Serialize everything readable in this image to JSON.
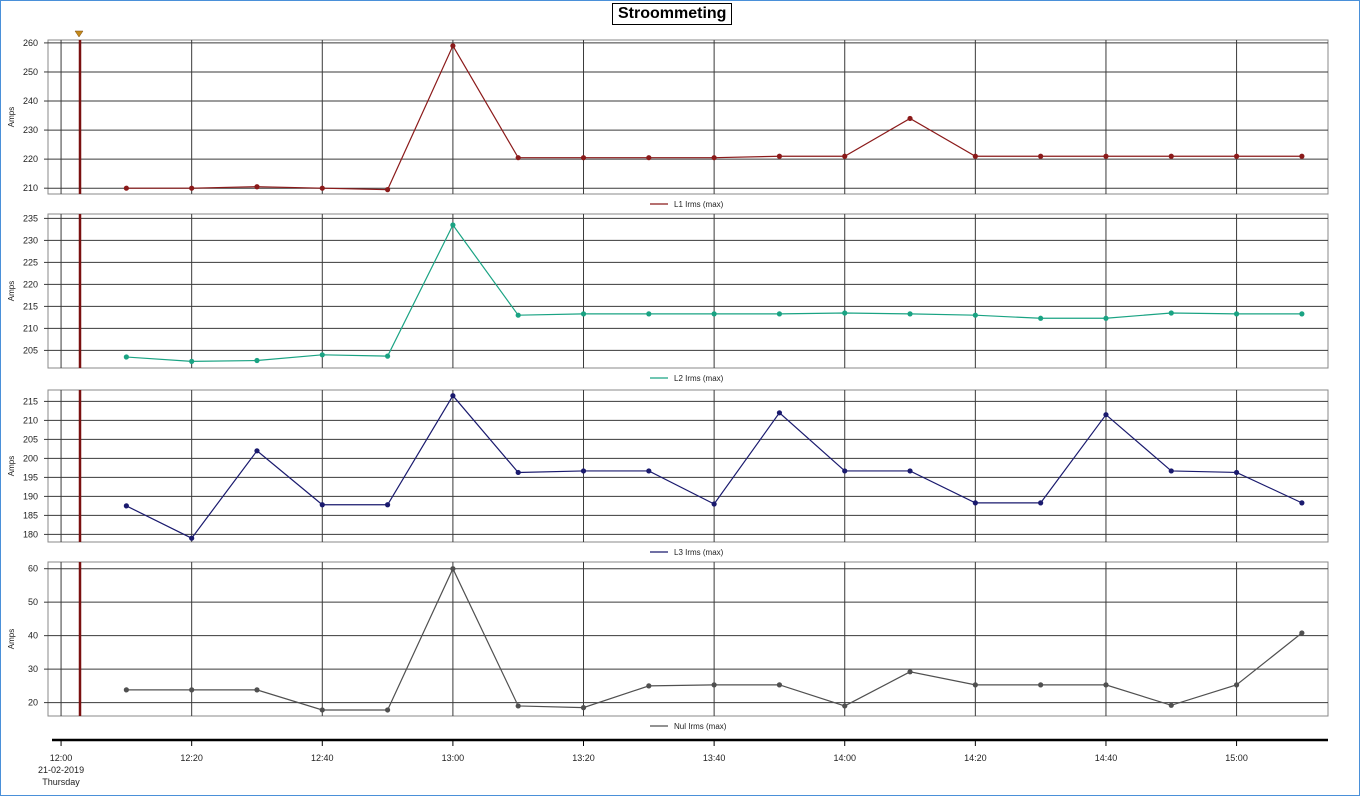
{
  "title": "Stroommeting",
  "date_label": "21-02-2019",
  "day_label": "Thursday",
  "chart_data": {
    "type": "line",
    "x": [
      "12:10",
      "12:20",
      "12:30",
      "12:40",
      "12:50",
      "13:00",
      "13:10",
      "13:20",
      "13:30",
      "13:40",
      "13:50",
      "14:00",
      "14:10",
      "14:20",
      "14:30",
      "14:40",
      "14:50",
      "15:00",
      "15:10"
    ],
    "x_ticks": [
      "12:00",
      "12:20",
      "12:40",
      "13:00",
      "13:20",
      "13:40",
      "14:00",
      "14:20",
      "14:40",
      "15:00"
    ],
    "xlim": [
      "11:58",
      "15:14"
    ],
    "grid": true,
    "panels": [
      {
        "ylabel": "Amps",
        "ylim": [
          208,
          261
        ],
        "y_ticks": [
          210,
          220,
          230,
          240,
          250,
          260
        ],
        "series": [
          {
            "name": "L1  Irms (max)",
            "color": "#8b1a1a",
            "values": [
              210,
              210,
              210.5,
              210,
              209.5,
              259,
              220.5,
              220.5,
              220.5,
              220.5,
              221,
              221,
              234,
              221,
              221,
              221,
              221,
              221,
              221
            ]
          }
        ]
      },
      {
        "ylabel": "Amps",
        "ylim": [
          201,
          236
        ],
        "y_ticks": [
          205,
          210,
          215,
          220,
          225,
          230,
          235
        ],
        "series": [
          {
            "name": "L2  Irms (max)",
            "color": "#1aa383",
            "values": [
              203.5,
              202.5,
              202.7,
              204,
              203.7,
              233.5,
              213,
              213.3,
              213.3,
              213.3,
              213.3,
              213.5,
              213.3,
              213,
              212.3,
              212.3,
              213.5,
              213.3,
              213.3
            ]
          }
        ]
      },
      {
        "ylabel": "Amps",
        "ylim": [
          178,
          218
        ],
        "y_ticks": [
          180,
          185,
          190,
          195,
          200,
          205,
          210,
          215
        ],
        "series": [
          {
            "name": "L3  Irms (max)",
            "color": "#1a1a6e",
            "values": [
              187.5,
              179,
              202,
              187.8,
              187.8,
              216.5,
              196.3,
              196.7,
              196.7,
              188,
              212,
              196.7,
              196.7,
              188.3,
              188.3,
              211.5,
              196.7,
              196.3,
              188.3
            ]
          }
        ]
      },
      {
        "ylabel": "Amps",
        "ylim": [
          16,
          62
        ],
        "y_ticks": [
          20,
          30,
          40,
          50,
          60
        ],
        "series": [
          {
            "name": "Nul  Irms (max)",
            "color": "#505050",
            "values": [
              23.8,
              23.8,
              23.8,
              17.8,
              17.8,
              60,
              19,
              18.5,
              25,
              25.3,
              25.3,
              19,
              29.2,
              25.3,
              25.3,
              25.3,
              19.2,
              25.3,
              40.8
            ]
          }
        ]
      }
    ]
  }
}
